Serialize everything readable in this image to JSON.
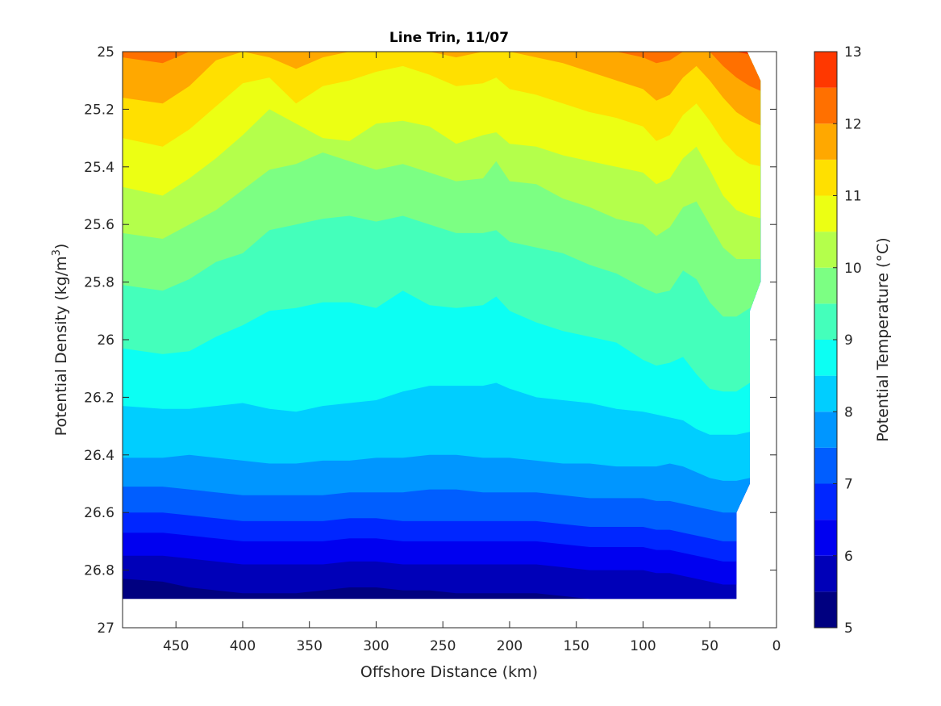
{
  "chart_data": {
    "type": "contour",
    "title": "Line Trin, 11/07",
    "xlabel": "Offshore Distance (km)",
    "ylabel_main": "Potential Density (kg/m",
    "ylabel_sup": "3",
    "ylabel_tail": ")",
    "colorbar_label": "Potential Temperature (°C)",
    "xlim": [
      490,
      0
    ],
    "ylim": [
      25,
      27
    ],
    "xticks": [
      450,
      400,
      350,
      300,
      250,
      200,
      150,
      100,
      50,
      0
    ],
    "yticks": [
      25,
      25.2,
      25.4,
      25.6,
      25.8,
      26,
      26.2,
      26.4,
      26.6,
      26.8,
      27
    ],
    "colorbar_range": [
      5,
      13
    ],
    "colorbar_ticks": [
      5,
      6,
      7,
      8,
      9,
      10,
      11,
      12,
      13
    ],
    "contour_levels": [
      5,
      5.5,
      6,
      6.5,
      7,
      7.5,
      8,
      8.5,
      9,
      9.5,
      10,
      10.5,
      11,
      11.5,
      12,
      12.5,
      13
    ],
    "level_colors": [
      "#000080",
      "#0000b8",
      "#0000f0",
      "#0026ff",
      "#005eff",
      "#0096ff",
      "#00ceff",
      "#0cfff3",
      "#44ffbb",
      "#7cff83",
      "#b4ff4b",
      "#ecff13",
      "#ffe000",
      "#ffa800",
      "#ff7000",
      "#ff3800",
      "#e60000",
      "#ae0000"
    ],
    "x_stations": [
      490,
      460,
      440,
      420,
      400,
      380,
      360,
      340,
      320,
      300,
      280,
      260,
      240,
      220,
      210,
      200,
      180,
      160,
      140,
      120,
      100,
      90,
      80,
      70,
      60,
      50,
      40,
      30,
      20,
      10
    ],
    "isotherms": [
      {
        "level": 5.5,
        "density": [
          26.83,
          26.84,
          26.86,
          26.87,
          26.88,
          26.88,
          26.88,
          26.87,
          26.86,
          26.86,
          26.87,
          26.87,
          26.88,
          26.88,
          26.88,
          26.88,
          26.88,
          26.89,
          26.9,
          26.9,
          26.9,
          26.9,
          26.9,
          26.9,
          26.9,
          26.9,
          26.9,
          26.9,
          26.9,
          26.9
        ]
      },
      {
        "level": 6,
        "density": [
          26.75,
          26.75,
          26.76,
          26.77,
          26.78,
          26.78,
          26.78,
          26.78,
          26.77,
          26.77,
          26.78,
          26.78,
          26.78,
          26.78,
          26.78,
          26.78,
          26.78,
          26.79,
          26.8,
          26.8,
          26.8,
          26.81,
          26.81,
          26.82,
          26.83,
          26.84,
          26.85,
          26.85,
          26.85,
          26.85
        ]
      },
      {
        "level": 6.5,
        "density": [
          26.67,
          26.67,
          26.68,
          26.69,
          26.7,
          26.7,
          26.7,
          26.7,
          26.69,
          26.69,
          26.7,
          26.7,
          26.7,
          26.7,
          26.7,
          26.7,
          26.7,
          26.71,
          26.72,
          26.72,
          26.72,
          26.73,
          26.73,
          26.74,
          26.75,
          26.76,
          26.77,
          26.77,
          26.77,
          26.77
        ]
      },
      {
        "level": 7,
        "density": [
          26.6,
          26.6,
          26.61,
          26.62,
          26.63,
          26.63,
          26.63,
          26.63,
          26.62,
          26.62,
          26.63,
          26.63,
          26.63,
          26.63,
          26.63,
          26.63,
          26.63,
          26.64,
          26.65,
          26.65,
          26.65,
          26.66,
          26.66,
          26.67,
          26.68,
          26.69,
          26.7,
          26.7,
          26.7,
          26.7
        ]
      },
      {
        "level": 7.5,
        "density": [
          26.51,
          26.51,
          26.52,
          26.53,
          26.54,
          26.54,
          26.54,
          26.54,
          26.53,
          26.53,
          26.53,
          26.52,
          26.52,
          26.53,
          26.53,
          26.53,
          26.53,
          26.54,
          26.55,
          26.55,
          26.55,
          26.56,
          26.56,
          26.57,
          26.58,
          26.59,
          26.6,
          26.6,
          26.6,
          26.6
        ]
      },
      {
        "level": 8,
        "density": [
          26.41,
          26.41,
          26.4,
          26.41,
          26.42,
          26.43,
          26.43,
          26.42,
          26.42,
          26.41,
          26.41,
          26.4,
          26.4,
          26.41,
          26.41,
          26.41,
          26.42,
          26.43,
          26.43,
          26.44,
          26.44,
          26.44,
          26.43,
          26.44,
          26.46,
          26.48,
          26.49,
          26.49,
          26.48,
          26.47
        ]
      },
      {
        "level": 8.5,
        "density": [
          26.23,
          26.24,
          26.24,
          26.23,
          26.22,
          26.24,
          26.25,
          26.23,
          26.22,
          26.21,
          26.18,
          26.16,
          26.16,
          26.16,
          26.15,
          26.17,
          26.2,
          26.21,
          26.22,
          26.24,
          26.25,
          26.26,
          26.27,
          26.28,
          26.31,
          26.33,
          26.33,
          26.33,
          26.32,
          26.31
        ]
      },
      {
        "level": 9,
        "density": [
          26.03,
          26.05,
          26.04,
          25.99,
          25.95,
          25.9,
          25.89,
          25.87,
          25.87,
          25.89,
          25.83,
          25.88,
          25.89,
          25.88,
          25.85,
          25.9,
          25.94,
          25.97,
          25.99,
          26.01,
          26.07,
          26.09,
          26.08,
          26.06,
          26.12,
          26.17,
          26.18,
          26.18,
          26.15,
          26.13
        ]
      },
      {
        "level": 9.5,
        "density": [
          25.81,
          25.83,
          25.79,
          25.73,
          25.7,
          25.62,
          25.6,
          25.58,
          25.57,
          25.59,
          25.57,
          25.6,
          25.63,
          25.63,
          25.62,
          25.66,
          25.68,
          25.7,
          25.74,
          25.77,
          25.82,
          25.84,
          25.83,
          25.76,
          25.79,
          25.87,
          25.92,
          25.92,
          25.89,
          25.87
        ]
      },
      {
        "level": 10,
        "density": [
          25.63,
          25.65,
          25.6,
          25.55,
          25.48,
          25.41,
          25.39,
          25.35,
          25.38,
          25.41,
          25.39,
          25.42,
          25.45,
          25.44,
          25.38,
          25.45,
          25.46,
          25.51,
          25.54,
          25.58,
          25.6,
          25.64,
          25.61,
          25.54,
          25.52,
          25.6,
          25.68,
          25.72,
          25.72,
          25.72
        ]
      },
      {
        "level": 10.5,
        "density": [
          25.47,
          25.5,
          25.44,
          25.37,
          25.29,
          25.2,
          25.25,
          25.3,
          25.31,
          25.25,
          25.24,
          25.26,
          25.32,
          25.29,
          25.28,
          25.32,
          25.33,
          25.36,
          25.38,
          25.4,
          25.42,
          25.46,
          25.44,
          25.37,
          25.33,
          25.41,
          25.5,
          25.55,
          25.57,
          25.58
        ]
      },
      {
        "level": 11,
        "density": [
          25.3,
          25.33,
          25.27,
          25.19,
          25.11,
          25.09,
          25.18,
          25.12,
          25.1,
          25.07,
          25.05,
          25.08,
          25.12,
          25.11,
          25.09,
          25.13,
          25.15,
          25.18,
          25.21,
          25.23,
          25.26,
          25.31,
          25.29,
          25.22,
          25.18,
          25.24,
          25.31,
          25.36,
          25.39,
          25.4
        ]
      },
      {
        "level": 11.5,
        "density": [
          25.16,
          25.18,
          25.12,
          25.03,
          25.0,
          25.02,
          25.06,
          25.02,
          25.0,
          25.0,
          25.0,
          25.0,
          25.02,
          25.0,
          25.0,
          25.0,
          25.02,
          25.04,
          25.07,
          25.1,
          25.13,
          25.17,
          25.15,
          25.09,
          25.05,
          25.1,
          25.16,
          25.21,
          25.24,
          25.26
        ]
      },
      {
        "level": 12,
        "density": [
          25.02,
          25.04,
          25.0,
          25.0,
          25.0,
          25.0,
          25.0,
          25.0,
          25.0,
          25.0,
          25.0,
          25.0,
          25.0,
          25.0,
          25.0,
          25.0,
          25.0,
          25.0,
          25.0,
          25.0,
          25.02,
          25.04,
          25.03,
          25.0,
          25.0,
          25.0,
          25.05,
          25.09,
          25.12,
          25.14
        ]
      },
      {
        "level": 12.5,
        "density": [
          25.0,
          25.0,
          25.0,
          25.0,
          25.0,
          25.0,
          25.0,
          25.0,
          25.0,
          25.0,
          25.0,
          25.0,
          25.0,
          25.0,
          25.0,
          25.0,
          25.0,
          25.0,
          25.0,
          25.0,
          25.0,
          25.0,
          25.0,
          25.0,
          25.0,
          25.0,
          25.0,
          25.0,
          25.01,
          25.02
        ]
      }
    ],
    "data_extent": {
      "top_right": [
        [
          490,
          25
        ],
        [
          22,
          25
        ],
        [
          12,
          25.1
        ],
        [
          12,
          25.8
        ],
        [
          20,
          25.9
        ]
      ],
      "bottom_right": [
        [
          20,
          26.5
        ],
        [
          30,
          26.6
        ],
        [
          30,
          26.9
        ]
      ],
      "bottom_left": [
        [
          490,
          26.9
        ]
      ]
    },
    "grid": false,
    "colorbar_position": "right"
  }
}
